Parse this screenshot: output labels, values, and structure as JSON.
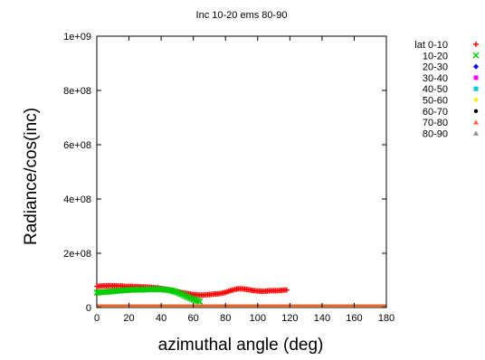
{
  "chart_data": {
    "type": "scatter",
    "title": "Inc 10-20 ems 80-90",
    "xlabel": "azimuthal angle (deg)",
    "ylabel": "Radiance/cos(inc)",
    "xlim": [
      0,
      180
    ],
    "ylim": [
      0,
      1000000000
    ],
    "xticks": [
      "0",
      "20",
      "40",
      "60",
      "80",
      "100",
      "120",
      "140",
      "160",
      "180"
    ],
    "yticks": [
      "0",
      "2e+08",
      "4e+08",
      "6e+08",
      "8e+08",
      "1e+09"
    ],
    "legend_position": "right",
    "grid": false,
    "series": [
      {
        "name": "lat 0-10",
        "color": "#ff0000",
        "marker": "plus",
        "x": [
          0,
          2,
          4,
          6,
          8,
          10,
          12,
          14,
          16,
          18,
          20,
          22,
          24,
          26,
          28,
          30,
          32,
          34,
          36,
          38,
          40,
          42,
          44,
          46,
          48,
          50,
          52,
          54,
          56,
          58,
          60,
          62,
          64,
          66,
          68,
          70,
          72,
          74,
          76,
          78,
          80,
          82,
          84,
          86,
          88,
          90,
          92,
          94,
          96,
          98,
          100,
          102,
          104,
          106,
          108,
          110,
          112,
          114,
          116,
          118
        ],
        "y": [
          78000000,
          79000000,
          80000000,
          80000000,
          81000000,
          80000000,
          80000000,
          79000000,
          79000000,
          78000000,
          78000000,
          78000000,
          77000000,
          77000000,
          76000000,
          76000000,
          75000000,
          74000000,
          73000000,
          72000000,
          70000000,
          68000000,
          66000000,
          64000000,
          61000000,
          58000000,
          56000000,
          54000000,
          52000000,
          50000000,
          48000000,
          47000000,
          46000000,
          46000000,
          47000000,
          48000000,
          49000000,
          50000000,
          51000000,
          53000000,
          56000000,
          60000000,
          64000000,
          67000000,
          69000000,
          69000000,
          68000000,
          66000000,
          64000000,
          62000000,
          61000000,
          60000000,
          60000000,
          61000000,
          62000000,
          62000000,
          62000000,
          63000000,
          64000000,
          65000000
        ]
      },
      {
        "name": "10-20",
        "color": "#00cc00",
        "marker": "cross",
        "x": [
          0,
          2,
          4,
          6,
          8,
          10,
          12,
          14,
          16,
          18,
          20,
          22,
          24,
          26,
          28,
          30,
          32,
          34,
          36,
          38,
          40,
          42,
          44,
          46,
          48,
          50,
          52,
          54,
          56,
          58,
          60,
          62,
          64
        ],
        "y": [
          55000000,
          56000000,
          57000000,
          58000000,
          59000000,
          60000000,
          61000000,
          62000000,
          63000000,
          64000000,
          65000000,
          65000000,
          66000000,
          66000000,
          66000000,
          66000000,
          67000000,
          67000000,
          67000000,
          67000000,
          67000000,
          66000000,
          65000000,
          63000000,
          60000000,
          56000000,
          51000000,
          46000000,
          40000000,
          35000000,
          30000000,
          26000000,
          22000000
        ]
      },
      {
        "name": "20-30",
        "color": "#0000ff",
        "marker": "star",
        "x": [],
        "y": []
      },
      {
        "name": "30-40",
        "color": "#ff00ff",
        "marker": "square",
        "x": [],
        "y": []
      },
      {
        "name": "40-50",
        "color": "#00cccc",
        "marker": "square",
        "x": [],
        "y": []
      },
      {
        "name": "50-60",
        "color": "#ffee00",
        "marker": "circle",
        "x": [],
        "y": []
      },
      {
        "name": "60-70",
        "color": "#000000",
        "marker": "circle",
        "x": [],
        "y": []
      },
      {
        "name": "70-80",
        "color": "#ff6040",
        "marker": "triangle",
        "x": [],
        "y": []
      },
      {
        "name": "80-90",
        "color": "#909090",
        "marker": "triangle",
        "x": [],
        "y": []
      }
    ],
    "baseline_band": {
      "color": "#d86a30",
      "x_from": 0,
      "x_to": 180,
      "y_from": 0,
      "y_to": 5000000
    }
  }
}
